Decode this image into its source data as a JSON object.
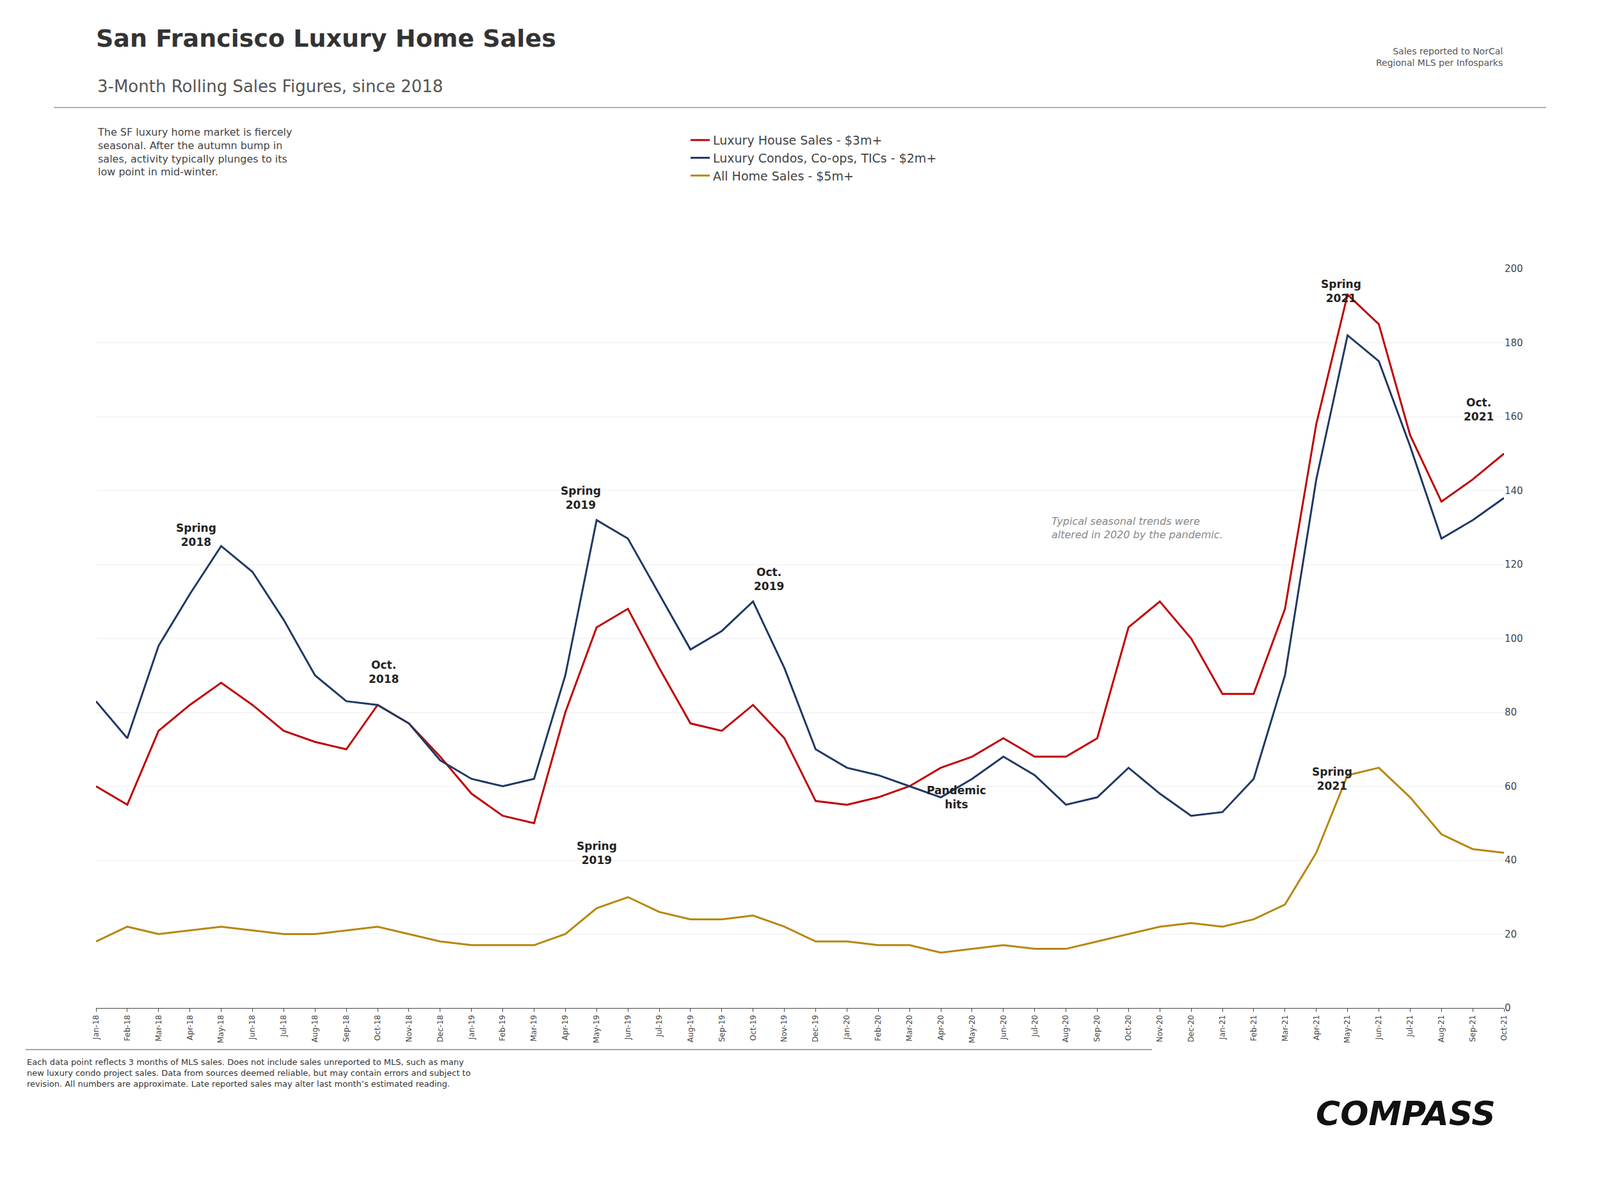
{
  "chart_data": {
    "type": "line",
    "title": "San Francisco Luxury Home Sales",
    "subtitle": "3-Month Rolling Sales Figures, since 2018",
    "annotations": [
      "Spring\n2018",
      "Oct.\n2018",
      "Spring\n2019",
      "Oct.\n2019",
      "Spring\n2019",
      "Pandemic\nhits",
      "Typical seasonal trends were\naltered in 2020 by the pandemic.",
      "Spring\n2021",
      "Spring\n2021",
      "Oct.\n2021",
      "Sales reported to NorCal\nRegional MLS per Infosparks",
      "The SF luxury home market is fiercely\nseasonal. After the autumn bump in\nsales, activity typically plunges to its\nlow point in mid-winter.",
      "Each data point reflects 3 months of MLS sales. Does not include sales unreported to MLS, such as many\nnew luxury condo project sales. Data from sources deemed reliable, but may contain errors and subject to\nrevision. All numbers are approximate. Late reported sales may alter last month’s estimated reading.",
      "COMPASS"
    ],
    "categories": [
      "Jan-18",
      "Feb-18",
      "Mar-18",
      "Apr-18",
      "May-18",
      "Jun-18",
      "Jul-18",
      "Aug-18",
      "Sep-18",
      "Oct-18",
      "Nov-18",
      "Dec-18",
      "Jan-19",
      "Feb-19",
      "Mar-19",
      "Apr-19",
      "May-19",
      "Jun-19",
      "Jul-19",
      "Aug-19",
      "Sep-19",
      "Oct-19",
      "Nov-19",
      "Dec-19",
      "Jan-20",
      "Feb-20",
      "Mar-20",
      "Apr-20",
      "May-20",
      "Jun-20",
      "Jul-20",
      "Aug-20",
      "Sep-20",
      "Oct-20",
      "Nov-20",
      "Dec-20",
      "Jan-21",
      "Feb-21",
      "Mar-21",
      "Apr-21",
      "May-21",
      "Jun-21",
      "Jul-21",
      "Aug-21",
      "Sep-21",
      "Oct-21"
    ],
    "series": [
      {
        "name": "Luxury House Sales - $3m+",
        "color": "#C00000",
        "values": [
          60,
          55,
          75,
          82,
          88,
          82,
          75,
          72,
          70,
          82,
          77,
          68,
          58,
          52,
          50,
          80,
          103,
          108,
          92,
          77,
          75,
          82,
          73,
          56,
          55,
          57,
          60,
          65,
          68,
          73,
          68,
          68,
          73,
          103,
          110,
          100,
          85,
          85,
          108,
          158,
          193,
          185,
          155,
          137,
          143,
          150
        ]
      },
      {
        "name": "Luxury Condos, Co-ops, TICs - $2m+",
        "color": "#1F3864",
        "values": [
          83,
          73,
          98,
          112,
          125,
          118,
          105,
          90,
          83,
          82,
          77,
          67,
          62,
          60,
          62,
          90,
          132,
          127,
          112,
          97,
          102,
          110,
          92,
          70,
          65,
          63,
          60,
          57,
          62,
          68,
          63,
          55,
          57,
          65,
          58,
          52,
          53,
          62,
          90,
          143,
          182,
          175,
          152,
          127,
          132,
          138
        ]
      },
      {
        "name": "All Home Sales - $5m+",
        "color": "#B8860B",
        "values": [
          18,
          22,
          20,
          21,
          22,
          21,
          20,
          20,
          21,
          22,
          20,
          18,
          17,
          17,
          17,
          20,
          27,
          30,
          26,
          24,
          24,
          25,
          22,
          18,
          18,
          17,
          17,
          15,
          16,
          17,
          16,
          16,
          18,
          20,
          22,
          23,
          22,
          24,
          28,
          42,
          63,
          65,
          57,
          47,
          43,
          42
        ]
      }
    ],
    "ylim": [
      0,
      200
    ],
    "yticks": [
      0,
      20,
      40,
      60,
      80,
      100,
      120,
      140,
      160,
      180,
      200
    ],
    "grid": true,
    "legend": "top"
  }
}
